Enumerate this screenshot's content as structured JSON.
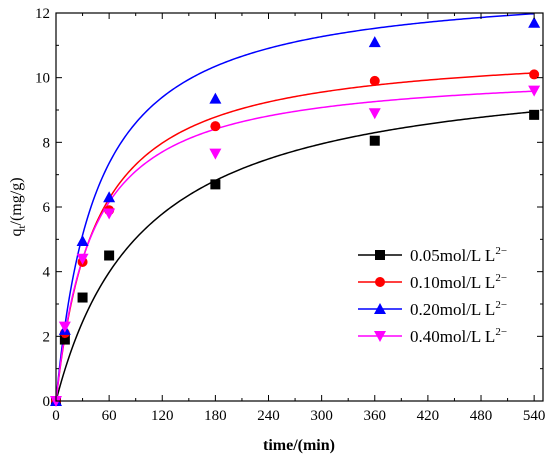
{
  "chart_data": {
    "type": "scatter",
    "title": "",
    "xlabel": "time/(min)",
    "ylabel": "q_t/(mg/g)",
    "ylabel_main": "q",
    "ylabel_sub": "t",
    "ylabel_rest": "/(mg/g)",
    "xlim": [
      0,
      550
    ],
    "ylim": [
      0,
      12
    ],
    "xticks": [
      "0",
      "60",
      "120",
      "180",
      "240",
      "300",
      "360",
      "420",
      "480",
      "540"
    ],
    "xtick_values": [
      0,
      60,
      120,
      180,
      240,
      300,
      360,
      420,
      480,
      540
    ],
    "yticks": [
      "0",
      "2",
      "4",
      "6",
      "8",
      "10",
      "12"
    ],
    "ytick_values": [
      0,
      2,
      4,
      6,
      8,
      10,
      12
    ],
    "grid": false,
    "legend_position": "right",
    "series": [
      {
        "name": "0.05mol/L L²⁻",
        "label_main": "0.05mol/L L",
        "label_sup": "2−",
        "color": "#000000",
        "marker": "square",
        "x": [
          0,
          10,
          30,
          60,
          180,
          360,
          540
        ],
        "y": [
          0,
          1.9,
          3.2,
          4.5,
          6.7,
          8.05,
          8.85
        ],
        "fit": {
          "qe": 10.6,
          "k": 0.000945
        }
      },
      {
        "name": "0.10mol/L L²⁻",
        "label_main": "0.10mol/L L",
        "label_sup": "2−",
        "color": "#ff0000",
        "marker": "circle",
        "x": [
          0,
          10,
          30,
          60,
          180,
          360,
          540
        ],
        "y": [
          0,
          2.1,
          4.3,
          5.9,
          8.5,
          9.9,
          10.1
        ],
        "fit": {
          "qe": 11.0,
          "k": 0.002
        }
      },
      {
        "name": "0.20mol/L L²⁻",
        "label_main": "0.20mol/L L",
        "label_sup": "2−",
        "color": "#0000ff",
        "marker": "triangle-up",
        "x": [
          0,
          10,
          30,
          60,
          180,
          360,
          540
        ],
        "y": [
          0,
          2.2,
          4.95,
          6.3,
          9.35,
          11.1,
          11.7
        ],
        "fit": {
          "qe": 13.0,
          "k": 0.00167
        }
      },
      {
        "name": "0.40mol/L L²⁻",
        "label_main": "0.40mol/L L",
        "label_sup": "2−",
        "color": "#ff00ff",
        "marker": "triangle-down",
        "x": [
          0,
          10,
          30,
          60,
          180,
          360,
          540
        ],
        "y": [
          0,
          2.3,
          4.4,
          5.8,
          7.65,
          8.9,
          9.6
        ],
        "fit": {
          "qe": 10.3,
          "k": 0.0024
        }
      }
    ]
  }
}
